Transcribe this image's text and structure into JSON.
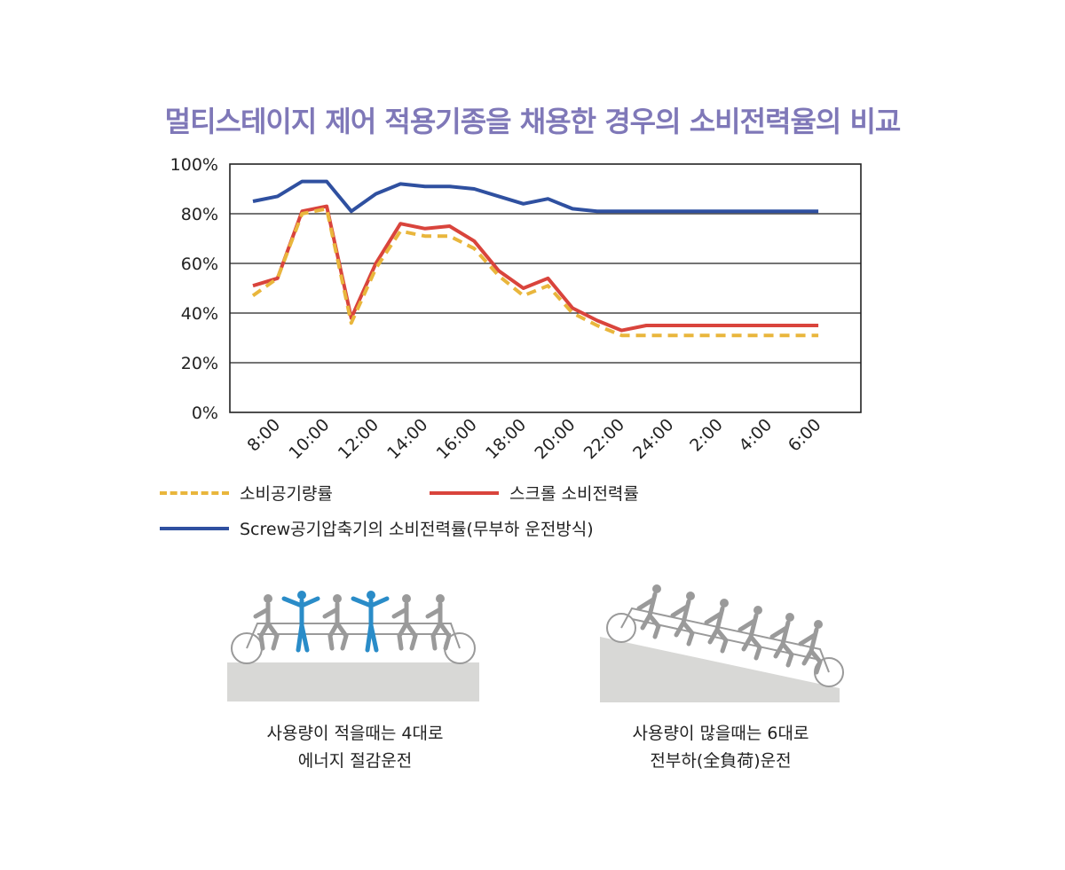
{
  "title": "멀티스테이지 제어 적용기종을 채용한 경우의 소비전력율의 비교",
  "chart_data": {
    "type": "line",
    "title": "멀티스테이지 제어 적용기종을 채용한 경우의 소비전력율의 비교",
    "xlabel": "",
    "ylabel": "",
    "ylim": [
      0,
      100
    ],
    "yticks": [
      "0%",
      "20%",
      "40%",
      "60%",
      "80%",
      "100%"
    ],
    "ytick_values": [
      0,
      20,
      40,
      60,
      80,
      100
    ],
    "xticks": [
      "8:00",
      "10:00",
      "12:00",
      "14:00",
      "16:00",
      "18:00",
      "20:00",
      "22:00",
      "24:00",
      "2:00",
      "4:00",
      "6:00"
    ],
    "x": [
      "7:00",
      "8:00",
      "9:00",
      "10:00",
      "11:00",
      "12:00",
      "13:00",
      "14:00",
      "15:00",
      "16:00",
      "17:00",
      "18:00",
      "19:00",
      "20:00",
      "21:00",
      "22:00",
      "23:00",
      "24:00",
      "1:00",
      "2:00",
      "3:00",
      "4:00",
      "5:00",
      "6:00"
    ],
    "grid": true,
    "legend_placement": "bottom",
    "series": [
      {
        "name": "소비공기량률",
        "color": "#e9b63c",
        "style": "dashed",
        "values": [
          47,
          54,
          80,
          82,
          36,
          58,
          73,
          71,
          71,
          66,
          55,
          47,
          51,
          40,
          35,
          31,
          31,
          31,
          31,
          31,
          31,
          31,
          31,
          31
        ]
      },
      {
        "name": "스크롤 소비전력률",
        "color": "#d9443c",
        "style": "solid",
        "values": [
          51,
          54,
          81,
          83,
          38,
          60,
          76,
          74,
          75,
          69,
          57,
          50,
          54,
          42,
          37,
          33,
          35,
          35,
          35,
          35,
          35,
          35,
          35,
          35
        ]
      },
      {
        "name": "Screw공기압축기의 소비전력률(무부하 운전방식)",
        "color": "#2f50a0",
        "style": "solid",
        "values": [
          85,
          87,
          93,
          93,
          81,
          88,
          92,
          91,
          91,
          90,
          87,
          84,
          86,
          82,
          81,
          81,
          81,
          81,
          81,
          81,
          81,
          81,
          81,
          81
        ]
      }
    ]
  },
  "illustrations": {
    "left_caption_1": "사용량이 적을때는 4대로",
    "left_caption_2": "에너지 절감운전",
    "right_caption_1": "사용량이 많을때는 6대로",
    "right_caption_2": "전부하(全負荷)운전",
    "active_color": "#2a8cc8",
    "idle_color": "#9a9a9a",
    "ground_color": "#d8d8d6"
  }
}
